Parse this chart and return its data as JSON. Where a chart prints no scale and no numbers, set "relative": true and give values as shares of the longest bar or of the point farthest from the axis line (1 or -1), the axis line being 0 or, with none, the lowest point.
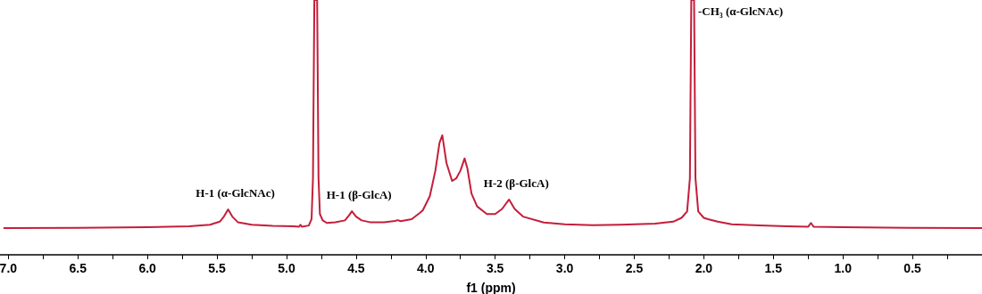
{
  "chart_data": {
    "type": "line",
    "relative": true,
    "xlabel": "f1 (ppm)",
    "xlim": [
      7.06,
      0.0
    ],
    "xticks": [
      {
        "value": 7,
        "label": "7.0"
      },
      {
        "value": 6.75,
        "label": null
      },
      6.5,
      {
        "value": 6.25,
        "label": null
      },
      {
        "value": 6,
        "label": "6.0"
      },
      {
        "value": 5.75,
        "label": null
      },
      5.5,
      {
        "value": 5.25,
        "label": null
      },
      {
        "value": 5,
        "label": "5.0"
      },
      {
        "value": 4.75,
        "label": null
      },
      4.5,
      {
        "value": 4.25,
        "label": null
      },
      {
        "value": 4,
        "label": "4.0"
      },
      {
        "value": 3.75,
        "label": null
      },
      3.5,
      {
        "value": 3.25,
        "label": null
      },
      {
        "value": 3,
        "label": "3.0"
      },
      {
        "value": 2.75,
        "label": null
      },
      2.5,
      {
        "value": 2.25,
        "label": null
      },
      {
        "value": 2,
        "label": "2.0"
      },
      {
        "value": 1.75,
        "label": null
      },
      1.5,
      {
        "value": 1.25,
        "label": null
      },
      {
        "value": 1,
        "label": "1.0"
      },
      {
        "value": 0.75,
        "label": null
      },
      0.5,
      {
        "value": 0.25,
        "label": null
      }
    ],
    "marker": "none",
    "line_style": "solid",
    "series": [
      {
        "color": "#c41e3a",
        "x": [
          7.03,
          6.5,
          6.0,
          5.7,
          5.55,
          5.48,
          5.45,
          5.42,
          5.39,
          5.35,
          5.25,
          5.1,
          4.95,
          4.91,
          4.9,
          4.89,
          4.84,
          4.82,
          4.81,
          4.8,
          4.78,
          4.77,
          4.76,
          4.74,
          4.71,
          4.65,
          4.58,
          4.55,
          4.53,
          4.5,
          4.46,
          4.4,
          4.3,
          4.22,
          4.2,
          4.18,
          4.1,
          4.04,
          4.02,
          3.97,
          3.93,
          3.9,
          3.88,
          3.85,
          3.81,
          3.78,
          3.75,
          3.72,
          3.7,
          3.67,
          3.63,
          3.56,
          3.5,
          3.45,
          3.4,
          3.36,
          3.3,
          3.15,
          3.0,
          2.8,
          2.6,
          2.5,
          2.35,
          2.22,
          2.16,
          2.12,
          2.1,
          2.09,
          2.07,
          2.06,
          2.04,
          2.0,
          1.97,
          1.9,
          1.8,
          1.6,
          1.4,
          1.25,
          1.23,
          1.21,
          1.0,
          0.5,
          0.0
        ],
        "values": [
          0.105,
          0.106,
          0.108,
          0.112,
          0.118,
          0.13,
          0.15,
          0.178,
          0.15,
          0.128,
          0.118,
          0.114,
          0.112,
          0.11,
          0.118,
          0.11,
          0.115,
          0.14,
          0.3,
          1.0,
          1.0,
          0.3,
          0.16,
          0.135,
          0.125,
          0.128,
          0.135,
          0.155,
          0.171,
          0.15,
          0.135,
          0.128,
          0.128,
          0.133,
          0.136,
          0.132,
          0.14,
          0.165,
          0.175,
          0.23,
          0.33,
          0.44,
          0.469,
          0.36,
          0.29,
          0.3,
          0.33,
          0.378,
          0.34,
          0.24,
          0.19,
          0.16,
          0.16,
          0.18,
          0.217,
          0.18,
          0.15,
          0.127,
          0.12,
          0.116,
          0.118,
          0.12,
          0.122,
          0.13,
          0.145,
          0.17,
          0.3,
          1.0,
          1.0,
          0.3,
          0.17,
          0.145,
          0.14,
          0.13,
          0.12,
          0.115,
          0.112,
          0.11,
          0.125,
          0.11,
          0.108,
          0.106,
          0.105
        ]
      }
    ],
    "annotations": [
      {
        "text": "H-1 (α-GlcNAc)",
        "x": 5.42,
        "y": 0.178
      },
      {
        "text": "H-1 (β-GlcA)",
        "x": 4.53,
        "y": 0.171
      },
      {
        "text": "H-2 (β-GlcA)",
        "x": 3.4,
        "y": 0.217
      },
      {
        "text": "-CH₃ (α-GlcNAc)",
        "x": 2.08,
        "y": 1.0
      }
    ]
  }
}
